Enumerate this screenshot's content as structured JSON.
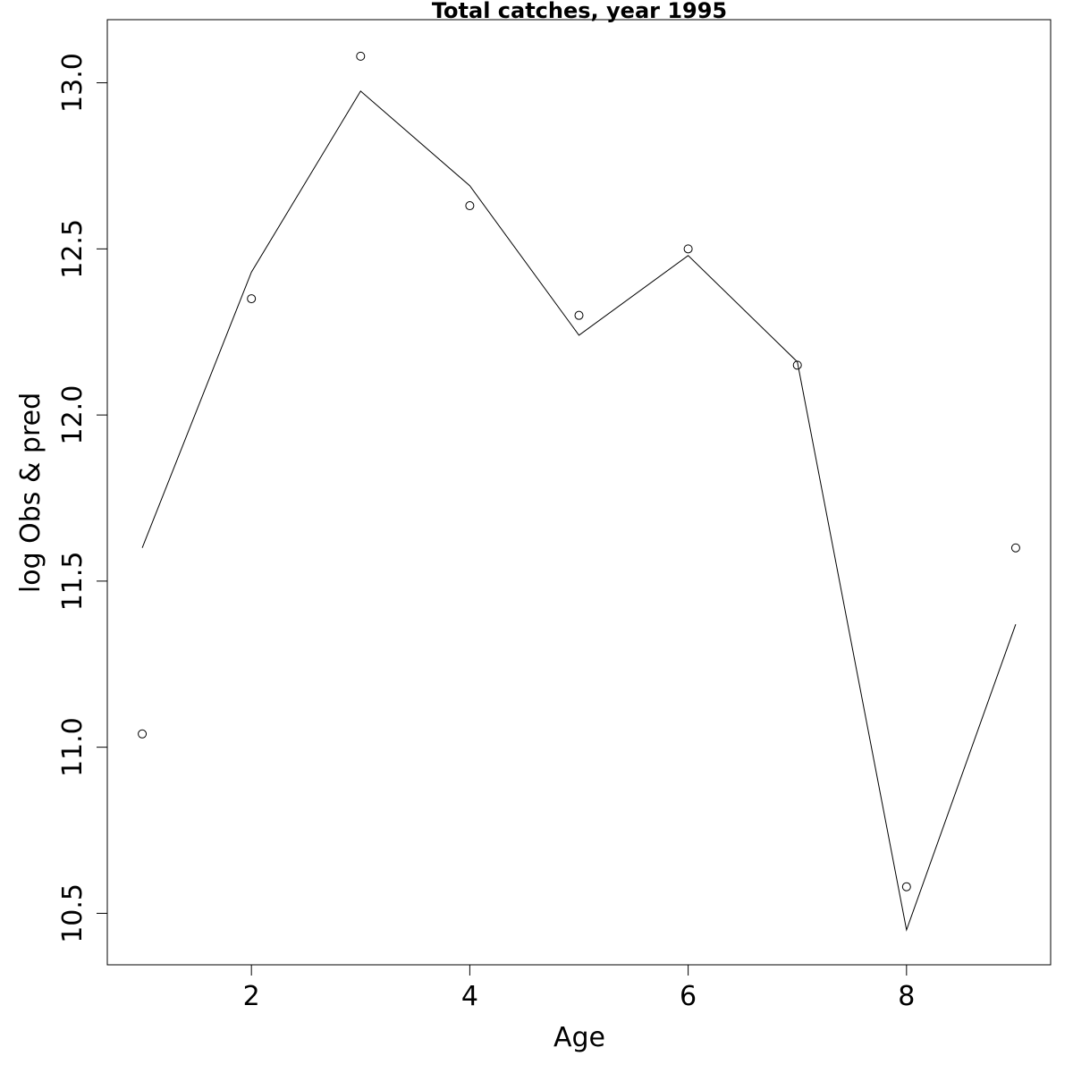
{
  "chart_data": {
    "type": "line",
    "title": "Total catches, year 1995",
    "xlabel": "Age",
    "ylabel": "log Obs & pred",
    "x": [
      1,
      2,
      3,
      4,
      5,
      6,
      7,
      8,
      9
    ],
    "xlim": [
      0.68,
      9.32
    ],
    "ylim": [
      10.345,
      13.19
    ],
    "x_ticks": [
      2,
      4,
      6,
      8
    ],
    "x_tick_labels": [
      "2",
      "4",
      "6",
      "8"
    ],
    "y_ticks": [
      10.5,
      11.0,
      11.5,
      12.0,
      12.5,
      13.0
    ],
    "y_tick_labels": [
      "10.5",
      "11.0",
      "11.5",
      "12.0",
      "12.5",
      "13.0"
    ],
    "grid": false,
    "series": [
      {
        "style": "points",
        "marker": "open-circle",
        "values": [
          11.04,
          12.35,
          13.08,
          12.63,
          12.3,
          12.5,
          12.15,
          10.58,
          11.6
        ]
      },
      {
        "style": "line",
        "values": [
          11.6,
          12.43,
          12.975,
          12.69,
          12.24,
          12.48,
          12.16,
          10.45,
          11.37
        ]
      }
    ]
  }
}
